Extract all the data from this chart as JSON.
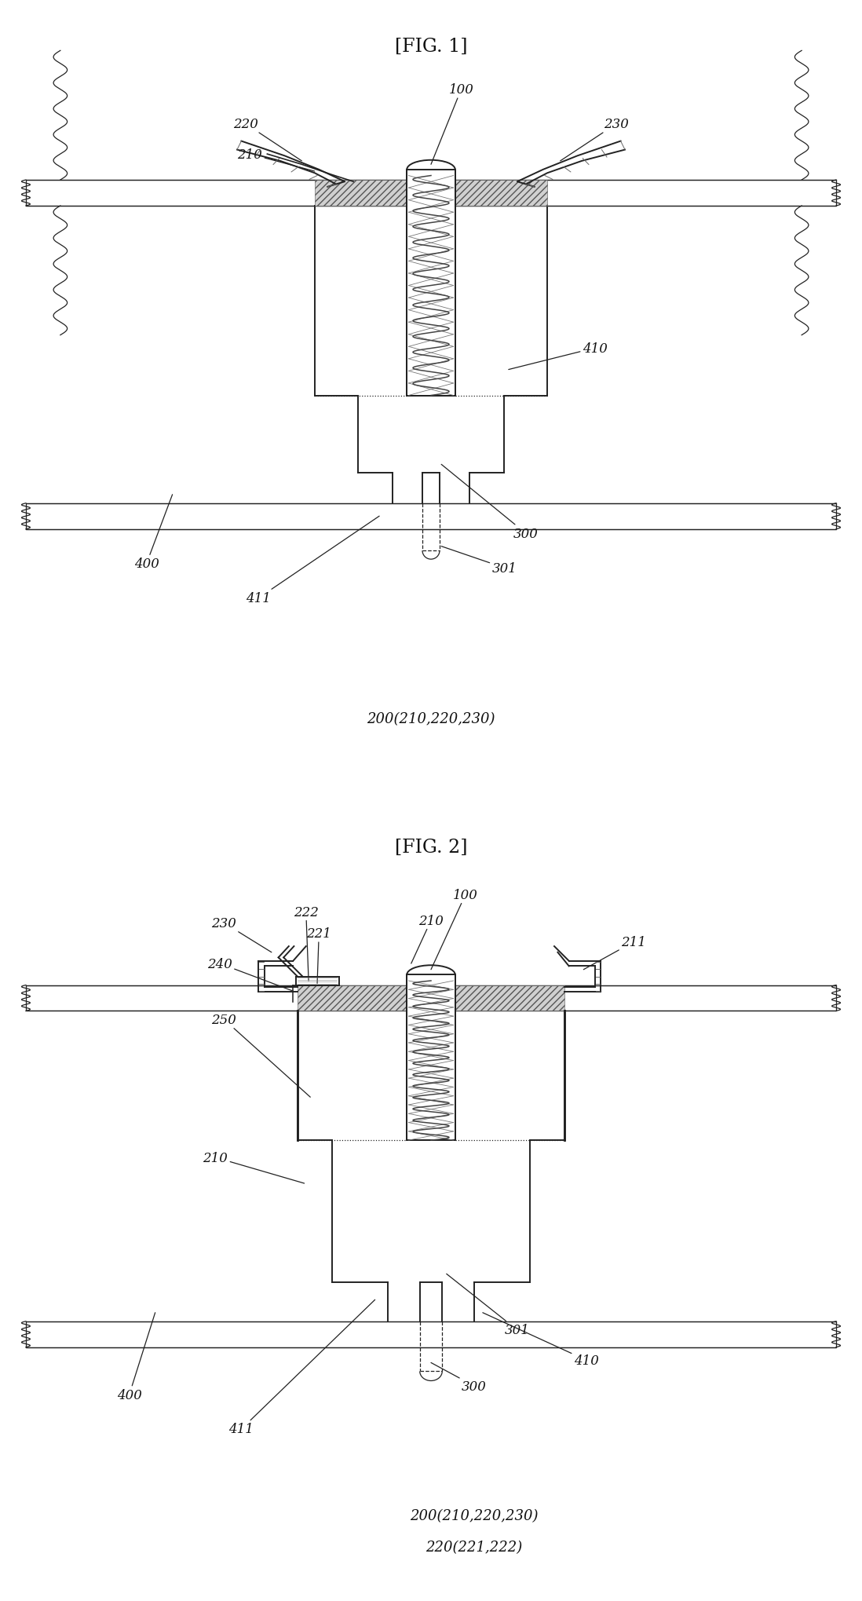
{
  "fig_title1": "[FIG. 1]",
  "fig_title2": "[FIG. 2]",
  "caption1": "200(210,220,230)",
  "caption2": "200(210,220,230)",
  "caption3": "220(221,222)",
  "bg_color": "#ffffff",
  "line_color": "#222222",
  "label_color": "#111111",
  "pcb_hatch_color": "#888888",
  "spring_hatch_color": "#555555"
}
